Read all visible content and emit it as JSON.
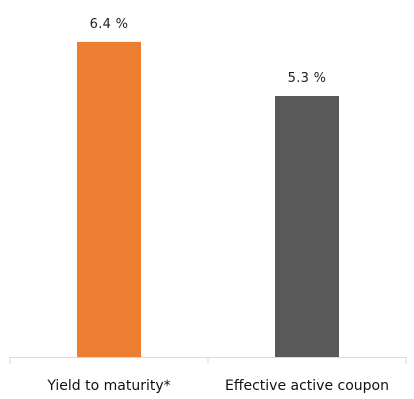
{
  "chart_data": {
    "type": "bar",
    "categories": [
      "Yield to maturity*",
      "Effective active coupon"
    ],
    "values": [
      6.4,
      5.3
    ],
    "value_labels": [
      "6.4 %",
      "5.3 %"
    ],
    "unit": "%",
    "colors": [
      "#ed7d31",
      "#595959"
    ],
    "ylim": [
      0,
      7.25
    ],
    "grid": false,
    "legend": "none",
    "axis_color": "#d9d9d9"
  }
}
